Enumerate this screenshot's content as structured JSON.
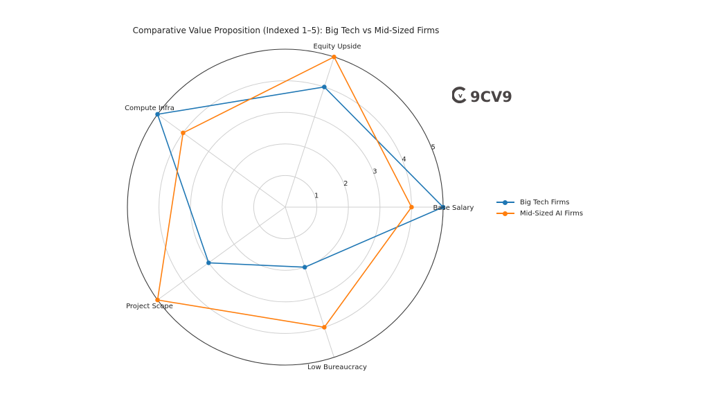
{
  "chart_data": {
    "type": "radar",
    "title": "Comparative Value Proposition (Indexed 1–5): Big Tech vs Mid-Sized Firms",
    "categories": [
      "Base Salary",
      "Equity Upside",
      "Compute Infra",
      "Project Scope",
      "Low Bureaucracy"
    ],
    "series": [
      {
        "name": "Big Tech Firms",
        "color": "#1f77b4",
        "values": [
          5,
          4,
          5,
          3,
          2
        ]
      },
      {
        "name": "Mid-Sized AI Firms",
        "color": "#ff7f0e",
        "values": [
          4,
          5,
          4,
          5,
          4
        ]
      }
    ],
    "radial_ticks": [
      "1",
      "2",
      "3",
      "4",
      "5"
    ],
    "rlim": [
      0,
      5
    ],
    "grid": true,
    "legend_position": "right"
  },
  "watermark": {
    "text": "9CV9",
    "mark": "v"
  },
  "colors": {
    "grid": "#cfcfcf",
    "spine": "#3a3a3a",
    "text": "#222222"
  }
}
